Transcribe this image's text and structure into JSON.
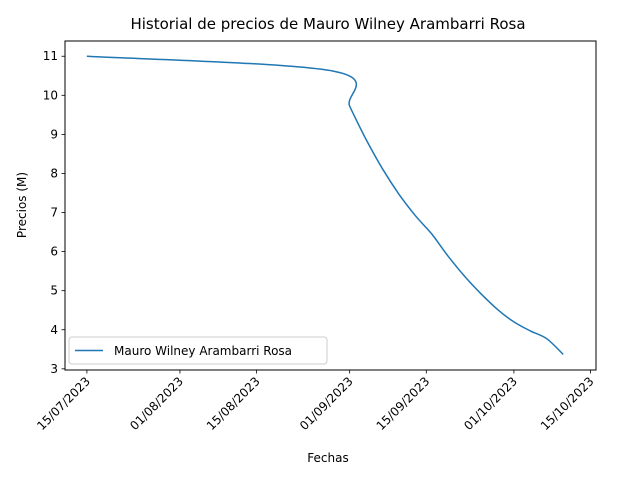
{
  "chart_data": {
    "type": "line",
    "title": "Historial de precios de Mauro Wilney Arambarri Rosa",
    "xlabel": "Fechas",
    "ylabel": "Precios (M)",
    "x_ticks": [
      "15/07/2023",
      "01/08/2023",
      "15/08/2023",
      "01/09/2023",
      "15/09/2023",
      "01/10/2023",
      "15/10/2023"
    ],
    "y_ticks": [
      "3",
      "4",
      "5",
      "6",
      "7",
      "8",
      "9",
      "10",
      "11"
    ],
    "xlim": [
      "2023-07-11",
      "2023-10-16"
    ],
    "ylim": [
      2.97,
      11.39
    ],
    "grid": false,
    "legend_position": "lower-left",
    "series": [
      {
        "name": "Mauro Wilney Arambarri Rosa",
        "color": "#1f77b4",
        "x": [
          "2023-07-15",
          "2023-08-29",
          "2023-09-01",
          "2023-09-04",
          "2023-09-07",
          "2023-09-10",
          "2023-09-13",
          "2023-09-16",
          "2023-09-19",
          "2023-09-22",
          "2023-09-25",
          "2023-09-28",
          "2023-10-01",
          "2023-10-04",
          "2023-10-07",
          "2023-10-10"
        ],
        "values": [
          11.0,
          10.62,
          9.72,
          8.87,
          8.12,
          7.47,
          6.92,
          6.45,
          5.88,
          5.37,
          4.92,
          4.52,
          4.2,
          3.97,
          3.77,
          3.37
        ]
      }
    ]
  }
}
